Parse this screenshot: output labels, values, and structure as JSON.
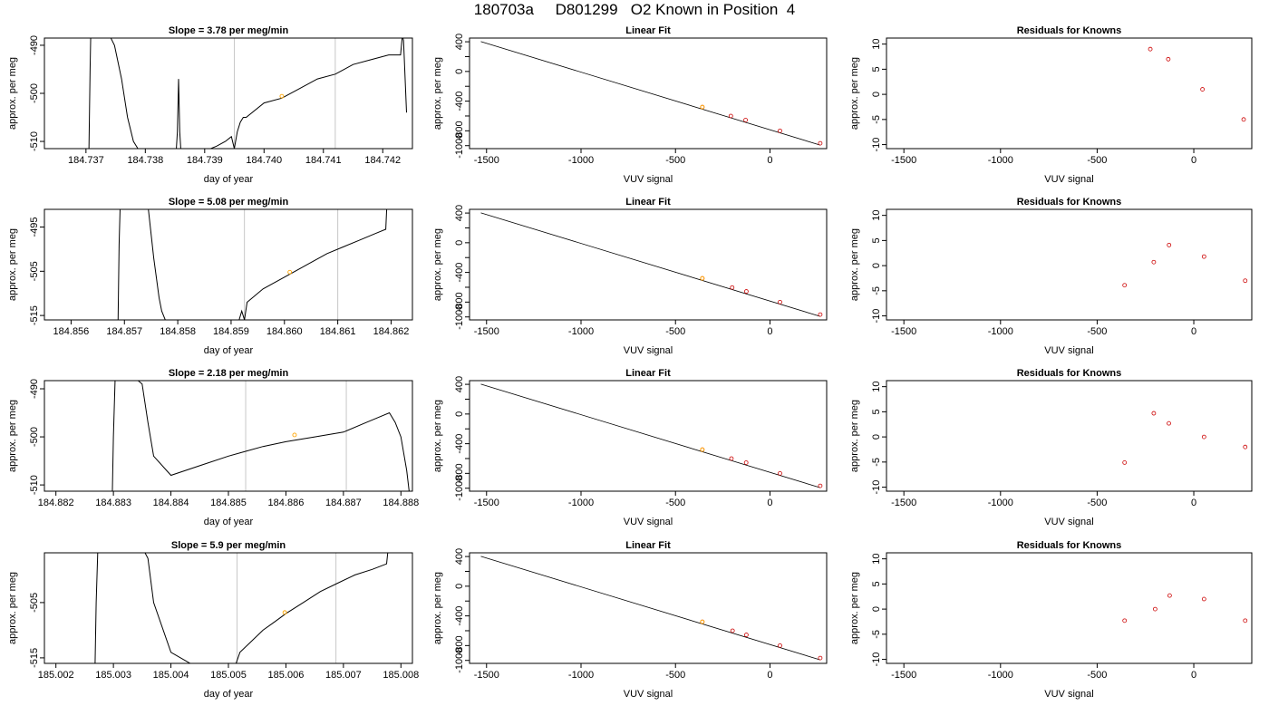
{
  "page": {
    "title": "180703a     D801299   O2 Known in Position  4"
  },
  "colors": {
    "trace": "#000000",
    "fit_line": "#000000",
    "known_point": "#cc0000",
    "marker_point": "#ffa500",
    "ref_line": "#c8c8c8"
  },
  "chart_data": [
    {
      "type": "line",
      "row": 1,
      "col": 1,
      "title": "Slope =  3.78  per meg/min",
      "xlabel": "day of year",
      "ylabel": "approx. per meg",
      "xlim": [
        184.7363,
        184.7425
      ],
      "ylim": [
        -511.5,
        -488.5
      ],
      "x_ticks": [
        "184.737",
        "184.738",
        "184.739",
        "184.740",
        "184.741",
        "184.742"
      ],
      "x_tick_values": [
        184.737,
        184.738,
        184.739,
        184.74,
        184.741,
        184.742
      ],
      "y_ticks": [
        "-510",
        "-500",
        "-490"
      ],
      "y_tick_values": [
        -510,
        -500,
        -490
      ],
      "ref_lines_x": [
        184.7395,
        184.7412
      ],
      "marker": {
        "x": 184.7403,
        "y": -500.6
      },
      "trace": {
        "x": [
          184.73705,
          184.73707,
          184.73708,
          184.73718,
          184.73725,
          184.73732,
          184.7374,
          184.73748,
          184.7376,
          184.7377,
          184.7378,
          184.7379,
          184.738,
          184.7381,
          184.7383,
          184.73852,
          184.73854,
          184.73856,
          184.73858,
          184.7386,
          184.7388,
          184.739,
          184.7392,
          184.73935,
          184.73945,
          184.7395,
          184.73955,
          184.7396,
          184.73965,
          184.7397,
          184.74,
          184.7403,
          184.7406,
          184.7409,
          184.7412,
          184.7415,
          184.7418,
          184.7421,
          184.7423,
          184.74233,
          184.74235,
          184.7424
        ],
        "y": [
          -512,
          -495,
          -488,
          -488,
          -488,
          -488,
          -488,
          -490,
          -497,
          -505,
          -510,
          -512,
          -512,
          -512,
          -512,
          -512,
          -508,
          -497,
          -508,
          -512,
          -512,
          -512,
          -511,
          -510,
          -509,
          -511.5,
          -508,
          -506,
          -505,
          -505,
          -502,
          -501,
          -499,
          -497,
          -496,
          -494,
          -493,
          -492,
          -492,
          -488,
          -489,
          -504
        ]
      }
    },
    {
      "type": "scatter",
      "row": 1,
      "col": 2,
      "title": "Linear Fit",
      "xlabel": "VUV signal",
      "ylabel": "approx. per meg",
      "xlim": [
        -1590,
        300
      ],
      "ylim": [
        -1040,
        450
      ],
      "x_ticks": [
        "-1500",
        "-1000",
        "-500",
        "0"
      ],
      "x_tick_values": [
        -1500,
        -1000,
        -500,
        0
      ],
      "y_ticks": [
        "-1000",
        "-800",
        "-400",
        "0",
        "400"
      ],
      "y_tick_values": [
        -1000,
        -800,
        -400,
        0,
        400
      ],
      "y_minor_ticks": [
        -600,
        -200,
        200
      ],
      "fit_line": {
        "x": [
          -1530,
          266
        ],
        "y": [
          403,
          -993
        ]
      },
      "points": {
        "x": [
          -358,
          -207,
          -129,
          53,
          266
        ],
        "y": [
          -480,
          -600,
          -655,
          -800,
          -968
        ]
      },
      "marker": {
        "x": -358,
        "y": -480
      }
    },
    {
      "type": "scatter",
      "row": 1,
      "col": 3,
      "title": "Residuals for Knowns",
      "xlabel": "VUV signal",
      "ylabel": "approx. per meg",
      "xlim": [
        -1590,
        300
      ],
      "ylim": [
        -10.8,
        11.2
      ],
      "x_ticks": [
        "-1500",
        "-1000",
        "-500",
        "0"
      ],
      "x_tick_values": [
        -1500,
        -1000,
        -500,
        0
      ],
      "y_ticks": [
        "-10",
        "-5",
        "0",
        "5",
        "10"
      ],
      "y_tick_values": [
        -10,
        -5,
        0,
        5,
        10
      ],
      "points": {
        "x": [
          -225,
          -132,
          45,
          258
        ],
        "y": [
          9,
          7,
          1,
          -5
        ]
      }
    },
    {
      "type": "line",
      "row": 2,
      "col": 1,
      "title": "Slope =  5.08  per meg/min",
      "xlabel": "day of year",
      "ylabel": "approx. per meg",
      "xlim": [
        184.8555,
        184.8624
      ],
      "ylim": [
        -516,
        -491
      ],
      "x_ticks": [
        "184.856",
        "184.857",
        "184.858",
        "184.859",
        "184.860",
        "184.861",
        "184.862"
      ],
      "x_tick_values": [
        184.856,
        184.857,
        184.858,
        184.859,
        184.86,
        184.861,
        184.862
      ],
      "y_ticks": [
        "-515",
        "-505",
        "-495"
      ],
      "y_tick_values": [
        -515,
        -505,
        -495
      ],
      "ref_lines_x": [
        184.85925,
        184.861
      ],
      "marker": {
        "x": 184.8601,
        "y": -505.2
      },
      "trace": {
        "x": [
          184.85688,
          184.8569,
          184.85692,
          184.857,
          184.8571,
          184.8572,
          184.85735,
          184.85745,
          184.85755,
          184.85765,
          184.8577,
          184.8578,
          184.858,
          184.8585,
          184.859,
          184.85915,
          184.8592,
          184.85925,
          184.8593,
          184.8596,
          184.8599,
          184.8602,
          184.8605,
          184.8608,
          184.8611,
          184.8614,
          184.8617,
          184.8619,
          184.86192,
          184.86195
        ],
        "y": [
          -517,
          -499,
          -490,
          -490,
          -490,
          -490,
          -490,
          -491,
          -502,
          -511,
          -514,
          -517,
          -517,
          -517,
          -517,
          -516,
          -514,
          -516,
          -512,
          -509,
          -507,
          -505,
          -503,
          -501,
          -499.5,
          -498,
          -496.5,
          -495.5,
          -490,
          -490
        ]
      }
    },
    {
      "type": "scatter",
      "row": 2,
      "col": 2,
      "title": "Linear Fit",
      "xlabel": "VUV signal",
      "ylabel": "approx. per meg",
      "xlim": [
        -1590,
        300
      ],
      "ylim": [
        -1040,
        450
      ],
      "x_ticks": [
        "-1500",
        "-1000",
        "-500",
        "0"
      ],
      "x_tick_values": [
        -1500,
        -1000,
        -500,
        0
      ],
      "y_ticks": [
        "-1000",
        "-800",
        "-400",
        "0",
        "400"
      ],
      "y_tick_values": [
        -1000,
        -800,
        -400,
        0,
        400
      ],
      "y_minor_ticks": [
        -600,
        -200,
        200
      ],
      "fit_line": {
        "x": [
          -1530,
          266
        ],
        "y": [
          403,
          -993
        ]
      },
      "points": {
        "x": [
          -358,
          -200,
          -125,
          53,
          266
        ],
        "y": [
          -480,
          -603,
          -656,
          -800,
          -968
        ]
      },
      "marker": {
        "x": -358,
        "y": -480
      }
    },
    {
      "type": "scatter",
      "row": 2,
      "col": 3,
      "title": "Residuals for Knowns",
      "xlabel": "VUV signal",
      "ylabel": "approx. per meg",
      "xlim": [
        -1590,
        300
      ],
      "ylim": [
        -10.8,
        11.2
      ],
      "x_ticks": [
        "-1500",
        "-1000",
        "-500",
        "0"
      ],
      "x_tick_values": [
        -1500,
        -1000,
        -500,
        0
      ],
      "y_ticks": [
        "-10",
        "-5",
        "0",
        "5",
        "10"
      ],
      "y_tick_values": [
        -10,
        -5,
        0,
        5,
        10
      ],
      "points": {
        "x": [
          -358,
          -207,
          -128,
          53,
          266
        ],
        "y": [
          -3.9,
          0.7,
          4.1,
          1.8,
          -3
        ]
      }
    },
    {
      "type": "line",
      "row": 3,
      "col": 1,
      "title": "Slope =  2.18  per meg/min",
      "xlabel": "day of year",
      "ylabel": "approx. per meg",
      "xlim": [
        184.8818,
        184.8882
      ],
      "ylim": [
        -511.3,
        -488.3
      ],
      "x_ticks": [
        "184.882",
        "184.883",
        "184.884",
        "184.885",
        "184.886",
        "184.887",
        "184.888"
      ],
      "x_tick_values": [
        184.882,
        184.883,
        184.884,
        184.885,
        184.886,
        184.887,
        184.888
      ],
      "y_ticks": [
        "-510",
        "-500",
        "-490"
      ],
      "y_tick_values": [
        -510,
        -500,
        -490
      ],
      "ref_lines_x": [
        184.8853,
        184.88705
      ],
      "marker": {
        "x": 184.88615,
        "y": -499.6
      },
      "trace": {
        "x": [
          184.88298,
          184.883,
          184.88303,
          184.8831,
          184.8832,
          184.8833,
          184.8834,
          184.8835,
          184.8836,
          184.8837,
          184.884,
          184.8845,
          184.885,
          184.8853,
          184.8856,
          184.886,
          184.8865,
          184.887,
          184.8874,
          184.8876,
          184.8878,
          184.8879,
          184.888,
          184.8881,
          184.88815
        ],
        "y": [
          -512,
          -500,
          -488,
          -488,
          -488,
          -488,
          -488,
          -489,
          -497,
          -504,
          -508,
          -506,
          -504,
          -503,
          -502,
          -501,
          -500,
          -499,
          -497,
          -496,
          -495,
          -497,
          -500,
          -507,
          -512
        ]
      }
    },
    {
      "type": "scatter",
      "row": 3,
      "col": 2,
      "title": "Linear Fit",
      "xlabel": "VUV signal",
      "ylabel": "approx. per meg",
      "xlim": [
        -1590,
        300
      ],
      "ylim": [
        -1040,
        450
      ],
      "x_ticks": [
        "-1500",
        "-1000",
        "-500",
        "0"
      ],
      "x_tick_values": [
        -1500,
        -1000,
        -500,
        0
      ],
      "y_ticks": [
        "-1000",
        "-800",
        "-400",
        "0",
        "400"
      ],
      "y_tick_values": [
        -1000,
        -800,
        -400,
        0,
        400
      ],
      "y_minor_ticks": [
        -600,
        -200,
        200
      ],
      "fit_line": {
        "x": [
          -1530,
          266
        ],
        "y": [
          403,
          -993
        ]
      },
      "points": {
        "x": [
          -358,
          -204,
          -126,
          53,
          266
        ],
        "y": [
          -480,
          -600,
          -655,
          -800,
          -968
        ]
      },
      "marker": {
        "x": -358,
        "y": -480
      }
    },
    {
      "type": "scatter",
      "row": 3,
      "col": 3,
      "title": "Residuals for Knowns",
      "xlabel": "VUV signal",
      "ylabel": "approx. per meg",
      "xlim": [
        -1590,
        300
      ],
      "ylim": [
        -10.8,
        11.2
      ],
      "x_ticks": [
        "-1500",
        "-1000",
        "-500",
        "0"
      ],
      "x_tick_values": [
        -1500,
        -1000,
        -500,
        0
      ],
      "y_ticks": [
        "-10",
        "-5",
        "0",
        "5",
        "10"
      ],
      "y_tick_values": [
        -10,
        -5,
        0,
        5,
        10
      ],
      "points": {
        "x": [
          -358,
          -207,
          -129,
          53,
          266
        ],
        "y": [
          -5.1,
          4.7,
          2.7,
          0,
          -2
        ]
      }
    },
    {
      "type": "line",
      "row": 4,
      "col": 1,
      "title": "Slope =  5.9  per meg/min",
      "xlabel": "day of year",
      "ylabel": "approx. per meg",
      "xlim": [
        185.0018,
        185.0082
      ],
      "ylim": [
        -516,
        -496
      ],
      "x_ticks": [
        "185.002",
        "185.003",
        "185.004",
        "185.005",
        "185.006",
        "185.007",
        "185.008"
      ],
      "x_tick_values": [
        185.002,
        185.003,
        185.004,
        185.005,
        185.006,
        185.007,
        185.008
      ],
      "y_ticks": [
        "-515",
        "-505"
      ],
      "y_tick_values": [
        -515,
        -505
      ],
      "ref_lines_x": [
        185.00515,
        185.00687
      ],
      "marker": {
        "x": 185.00598,
        "y": -506.8
      },
      "trace": {
        "x": [
          185.00268,
          185.0027,
          185.00273,
          185.0028,
          185.0029,
          185.003,
          185.0031,
          185.0032,
          185.0033,
          185.0034,
          185.0035,
          185.0036,
          185.0037,
          185.004,
          185.0045,
          185.0049,
          185.005,
          185.0051,
          185.0052,
          185.0054,
          185.0056,
          185.0058,
          185.006,
          185.0063,
          185.0066,
          185.0069,
          185.0072,
          185.0075,
          185.00775,
          185.00778
        ],
        "y": [
          -517,
          -505,
          -495,
          -495,
          -495,
          -495,
          -495,
          -495,
          -495,
          -495,
          -495,
          -497,
          -505,
          -514,
          -517,
          -517,
          -516,
          -517,
          -514,
          -512,
          -510,
          -508.5,
          -507,
          -505,
          -503,
          -501.5,
          -500,
          -499,
          -498,
          -495
        ]
      }
    },
    {
      "type": "scatter",
      "row": 4,
      "col": 2,
      "title": "Linear Fit",
      "xlabel": "VUV signal",
      "ylabel": "approx. per meg",
      "xlim": [
        -1590,
        300
      ],
      "ylim": [
        -1040,
        450
      ],
      "x_ticks": [
        "-1500",
        "-1000",
        "-500",
        "0"
      ],
      "x_tick_values": [
        -1500,
        -1000,
        -500,
        0
      ],
      "y_ticks": [
        "-1000",
        "-800",
        "-400",
        "0",
        "400"
      ],
      "y_tick_values": [
        -1000,
        -800,
        -400,
        0,
        400
      ],
      "y_minor_ticks": [
        -600,
        -200,
        200
      ],
      "fit_line": {
        "x": [
          -1530,
          266
        ],
        "y": [
          403,
          -993
        ]
      },
      "points": {
        "x": [
          -358,
          -198,
          -125,
          53,
          266
        ],
        "y": [
          -480,
          -600,
          -656,
          -800,
          -968
        ]
      },
      "marker": {
        "x": -358,
        "y": -480
      }
    },
    {
      "type": "scatter",
      "row": 4,
      "col": 3,
      "title": "Residuals for Knowns",
      "xlabel": "VUV signal",
      "ylabel": "approx. per meg",
      "xlim": [
        -1590,
        300
      ],
      "ylim": [
        -10.8,
        11.2
      ],
      "x_ticks": [
        "-1500",
        "-1000",
        "-500",
        "0"
      ],
      "x_tick_values": [
        -1500,
        -1000,
        -500,
        0
      ],
      "y_ticks": [
        "-10",
        "-5",
        "0",
        "5",
        "10"
      ],
      "y_tick_values": [
        -10,
        -5,
        0,
        5,
        10
      ],
      "points": {
        "x": [
          -358,
          -200,
          -125,
          53,
          266
        ],
        "y": [
          -2.3,
          0,
          2.7,
          2,
          -2.3
        ]
      }
    }
  ]
}
